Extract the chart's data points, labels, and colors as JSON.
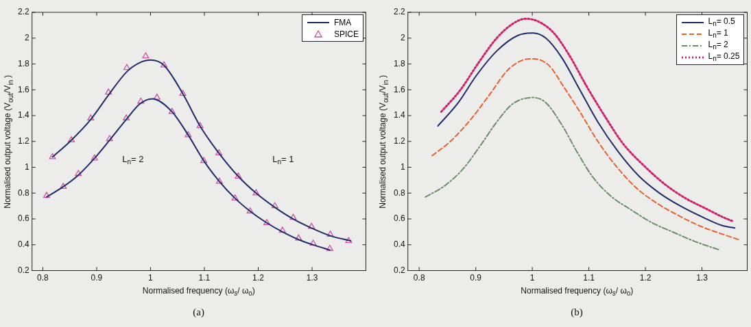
{
  "chart_data": [
    {
      "type": "line",
      "xlabel": "Normalised frequency (ω$_{s}$/ ω$_{o}$)",
      "ylabel": "Normalised output voltage (V$_{out}$/V$_{in}$ )",
      "xlim": [
        0.78,
        1.4
      ],
      "ylim": [
        0.2,
        2.2
      ],
      "xticks": [
        0.8,
        0.9,
        1,
        1.1,
        1.2,
        1.3
      ],
      "yticks": [
        0.2,
        0.4,
        0.6,
        0.8,
        1,
        1.2,
        1.4,
        1.6,
        1.8,
        2,
        2.2
      ],
      "legend": "top right",
      "annotations": [
        "L$_{n}$= 2",
        "L$_{n}$= 1",
        "(a)"
      ],
      "series": [
        {
          "name": "FMA",
          "marker": "none",
          "line_style": "solid",
          "color": "#1f2a6b",
          "x": [
            0.818,
            0.853,
            0.889,
            0.922,
            0.956,
            0.98,
            1.0,
            1.025,
            1.06,
            1.092,
            1.127,
            1.163,
            1.196,
            1.231,
            1.265,
            1.299,
            1.334,
            1.372
          ],
          "values": [
            1.08,
            1.21,
            1.37,
            1.56,
            1.74,
            1.81,
            1.83,
            1.79,
            1.57,
            1.32,
            1.11,
            0.93,
            0.8,
            0.69,
            0.6,
            0.53,
            0.47,
            0.43
          ]
        },
        {
          "marker": "none",
          "line_style": "solid",
          "color": "#1f2a6b",
          "x": [
            0.807,
            0.838,
            0.866,
            0.896,
            0.924,
            0.955,
            0.98,
            1.003,
            1.04,
            1.07,
            1.099,
            1.128,
            1.157,
            1.185,
            1.216,
            1.245,
            1.275,
            1.302,
            1.333
          ],
          "values": [
            0.77,
            0.85,
            0.94,
            1.07,
            1.21,
            1.37,
            1.49,
            1.53,
            1.43,
            1.25,
            1.05,
            0.89,
            0.76,
            0.66,
            0.57,
            0.5,
            0.44,
            0.4,
            0.36
          ]
        },
        {
          "name": "SPICE",
          "type": "scatter",
          "marker": "triangle",
          "color": "#d04fa0",
          "x": [
            0.818,
            0.853,
            0.889,
            0.922,
            0.956,
            0.991,
            1.025,
            1.06,
            1.092,
            1.127,
            1.163,
            1.196,
            1.231,
            1.265,
            1.299,
            1.334,
            1.368
          ],
          "values": [
            1.08,
            1.21,
            1.38,
            1.58,
            1.77,
            1.86,
            1.79,
            1.57,
            1.32,
            1.11,
            0.93,
            0.8,
            0.7,
            0.61,
            0.54,
            0.48,
            0.43
          ]
        },
        {
          "type": "scatter",
          "marker": "triangle",
          "color": "#d04fa0",
          "x": [
            0.807,
            0.838,
            0.866,
            0.896,
            0.924,
            0.955,
            0.982,
            1.012,
            1.04,
            1.07,
            1.099,
            1.128,
            1.157,
            1.185,
            1.216,
            1.245,
            1.275,
            1.302,
            1.333
          ],
          "values": [
            0.78,
            0.85,
            0.95,
            1.07,
            1.22,
            1.38,
            1.51,
            1.54,
            1.43,
            1.25,
            1.05,
            0.89,
            0.76,
            0.66,
            0.57,
            0.51,
            0.45,
            0.41,
            0.37
          ]
        }
      ]
    },
    {
      "type": "line",
      "xlabel": "Normalised frequency (ω$_{s}$/ ω$_{o}$)",
      "ylabel": "Normalised output voltage (V$_{out}$/V$_{in}$ )",
      "xlim": [
        0.78,
        1.38
      ],
      "ylim": [
        0.2,
        2.2
      ],
      "xticks": [
        0.8,
        0.9,
        1,
        1.1,
        1.2,
        1.3
      ],
      "yticks": [
        0.2,
        0.4,
        0.6,
        0.8,
        1,
        1.2,
        1.4,
        1.6,
        1.8,
        2,
        2.2
      ],
      "legend": "top right",
      "annotations": [
        "(b)"
      ],
      "series": [
        {
          "name": "L$_{n}$= 0.5",
          "marker": "none",
          "line_style": "solid",
          "color": "#1f2a6b",
          "x": [
            0.833,
            0.869,
            0.901,
            0.937,
            0.974,
            1.001,
            1.024,
            1.052,
            1.084,
            1.116,
            1.152,
            1.189,
            1.225,
            1.262,
            1.303,
            1.335,
            1.358
          ],
          "values": [
            1.32,
            1.5,
            1.71,
            1.9,
            2.02,
            2.04,
            2.0,
            1.85,
            1.6,
            1.35,
            1.12,
            0.93,
            0.8,
            0.7,
            0.61,
            0.55,
            0.53
          ]
        },
        {
          "name": "L$_{n}$= 1",
          "marker": "none",
          "line_style": "dashed",
          "color": "#e8602c",
          "x": [
            0.823,
            0.855,
            0.891,
            0.924,
            0.956,
            0.983,
            1.001,
            1.029,
            1.056,
            1.084,
            1.116,
            1.148,
            1.184,
            1.221,
            1.257,
            1.294,
            1.331,
            1.365
          ],
          "values": [
            1.09,
            1.2,
            1.37,
            1.56,
            1.75,
            1.83,
            1.84,
            1.79,
            1.62,
            1.43,
            1.2,
            1.01,
            0.84,
            0.72,
            0.63,
            0.55,
            0.49,
            0.44
          ]
        },
        {
          "name": "L$_{n}$= 2",
          "marker": "none",
          "line_style": "dashdot",
          "color": "#6a8a6a",
          "x": [
            0.811,
            0.846,
            0.878,
            0.91,
            0.937,
            0.965,
            1.001,
            1.024,
            1.052,
            1.079,
            1.106,
            1.138,
            1.175,
            1.212,
            1.248,
            1.285,
            1.331
          ],
          "values": [
            0.77,
            0.86,
            0.99,
            1.18,
            1.35,
            1.49,
            1.54,
            1.5,
            1.33,
            1.12,
            0.93,
            0.78,
            0.67,
            0.57,
            0.5,
            0.43,
            0.36
          ]
        },
        {
          "name": "L$_{n}$= 0.25",
          "marker": "none",
          "line_style": "dotted",
          "color": "#d0206a",
          "x": [
            0.839,
            0.873,
            0.905,
            0.937,
            0.965,
            0.988,
            1.01,
            1.038,
            1.065,
            1.097,
            1.129,
            1.161,
            1.198,
            1.234,
            1.271,
            1.307,
            1.339,
            1.356
          ],
          "values": [
            1.43,
            1.6,
            1.81,
            2.0,
            2.11,
            2.15,
            2.13,
            2.04,
            1.87,
            1.62,
            1.39,
            1.18,
            1.01,
            0.87,
            0.76,
            0.68,
            0.61,
            0.58
          ]
        }
      ]
    }
  ]
}
